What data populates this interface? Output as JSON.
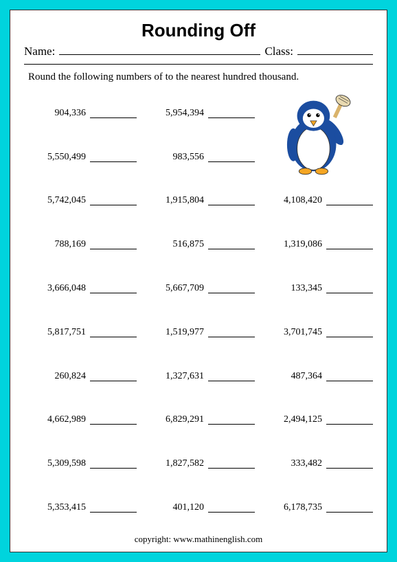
{
  "title": "Rounding Off",
  "name_label": "Name:",
  "class_label": "Class:",
  "instruction": "Round the following numbers of to the nearest hundred thousand.",
  "copyright": "copyright:   www.mathinenglish.com",
  "colors": {
    "page_bg": "#00d4dd",
    "sheet_bg": "#ffffff",
    "text": "#000000",
    "penguin_body": "#1b4da0",
    "penguin_belly": "#ffffff",
    "penguin_beak": "#f5a623",
    "penguin_brush_handle": "#d9b36b",
    "penguin_brush_bristle": "#e8d9b0"
  },
  "grid": {
    "columns": 3,
    "rows": 10,
    "cells": [
      [
        "904,336",
        "5,954,394",
        null
      ],
      [
        "5,550,499",
        "983,556",
        null
      ],
      [
        "5,742,045",
        "1,915,804",
        "4,108,420"
      ],
      [
        "788,169",
        "516,875",
        "1,319,086"
      ],
      [
        "3,666,048",
        "5,667,709",
        "133,345"
      ],
      [
        "5,817,751",
        "1,519,977",
        "3,701,745"
      ],
      [
        "260,824",
        "1,327,631",
        "487,364"
      ],
      [
        "4,662,989",
        "6,829,291",
        "2,494,125"
      ],
      [
        "5,309,598",
        "1,827,582",
        "333,482"
      ],
      [
        "5,353,415",
        "401,120",
        "6,178,735"
      ]
    ]
  }
}
